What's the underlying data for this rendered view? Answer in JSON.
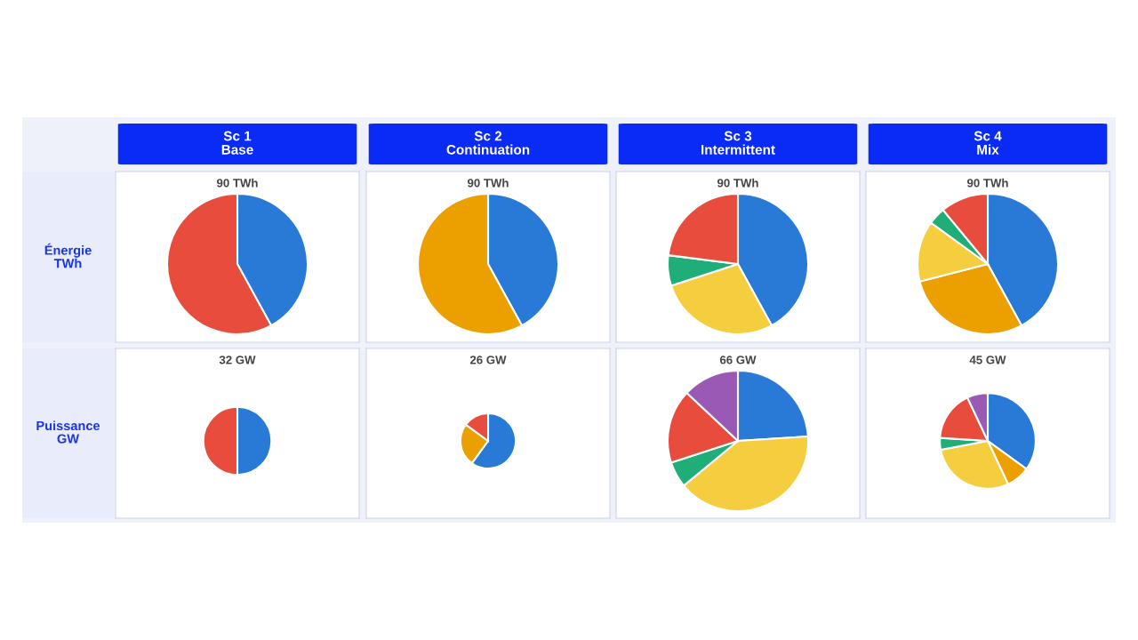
{
  "chart_data": [
    {
      "type": "other",
      "title": "Sc 1\nBase"
    },
    {
      "type": "other",
      "title": "Sc 2\nContinuation"
    },
    {
      "type": "other",
      "title": "Sc 3\nIntermittent"
    },
    {
      "type": "other",
      "title": "Sc 4\nMix"
    },
    {
      "type": "other",
      "title": "Énergie\nTWh"
    },
    {
      "type": "pie",
      "title": "90 TWh",
      "categories": [
        null,
        null
      ],
      "values": [
        42,
        58
      ],
      "colors": [
        "#2979d6",
        "#e74c3c"
      ]
    },
    {
      "type": "pie",
      "title": "90 TWh",
      "categories": [
        null,
        null
      ],
      "values": [
        42,
        58
      ],
      "colors": [
        "#2979d6",
        "#eca000"
      ]
    },
    {
      "type": "pie",
      "title": "90 TWh",
      "categories": [
        null,
        null,
        null,
        null
      ],
      "values": [
        42,
        28,
        7,
        23
      ],
      "colors": [
        "#2979d6",
        "#f4ce3f",
        "#1fae78",
        "#e74c3c"
      ]
    },
    {
      "type": "pie",
      "title": "90 TWh",
      "categories": [
        null,
        null,
        null,
        null,
        null
      ],
      "values": [
        42,
        29,
        14,
        4,
        11
      ],
      "colors": [
        "#2979d6",
        "#eca000",
        "#f4ce3f",
        "#1fae78",
        "#e74c3c"
      ]
    },
    {
      "type": "other",
      "title": "Puissance\nGW"
    },
    {
      "type": "pie",
      "title": "32 GW",
      "categories": [
        null,
        null
      ],
      "values": [
        50,
        50
      ],
      "colors": [
        "#2979d6",
        "#e74c3c"
      ]
    },
    {
      "type": "pie",
      "title": "26 GW",
      "categories": [
        null,
        null,
        null
      ],
      "values": [
        60,
        25,
        15
      ],
      "colors": [
        "#2979d6",
        "#eca000",
        "#e74c3c"
      ]
    },
    {
      "type": "pie",
      "title": "66 GW",
      "categories": [
        null,
        null,
        null,
        null,
        null
      ],
      "values": [
        24,
        40,
        6,
        17,
        13
      ],
      "colors": [
        "#2979d6",
        "#f4ce3f",
        "#1fae78",
        "#e74c3c",
        "#9b59b6"
      ]
    },
    {
      "type": "pie",
      "title": "45 GW",
      "categories": [
        null,
        null,
        null,
        null,
        null,
        null
      ],
      "values": [
        35,
        8,
        29,
        4,
        17,
        7
      ],
      "colors": [
        "#2979d6",
        "#eca000",
        "#f4ce3f",
        "#1fae78",
        "#e74c3c",
        "#9b59b6"
      ]
    }
  ]
}
